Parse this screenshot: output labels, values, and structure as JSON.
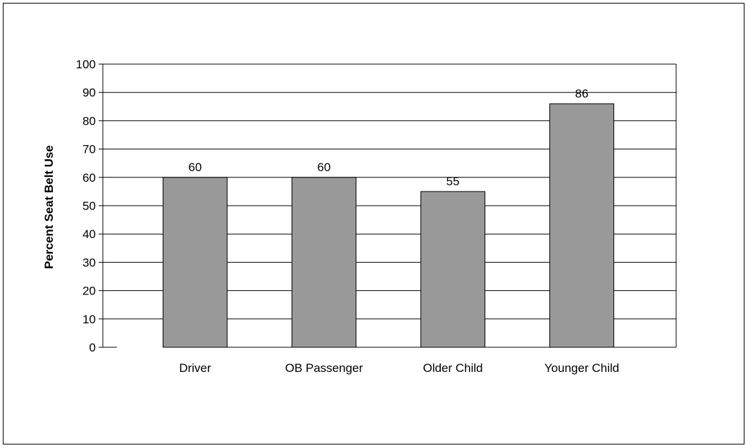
{
  "chart_data": {
    "type": "bar",
    "title": "",
    "xlabel": "",
    "ylabel": "Percent Seat Belt Use",
    "categories": [
      "Driver",
      "OB Passenger",
      "Older Child",
      "Younger Child"
    ],
    "values": [
      60,
      60,
      55,
      86
    ],
    "data_labels": [
      "60",
      "60",
      "55",
      "86"
    ],
    "ylim": [
      0,
      100
    ],
    "yticks": [
      0,
      10,
      20,
      30,
      40,
      50,
      60,
      70,
      80,
      90,
      100
    ],
    "grid": true,
    "legend": "none",
    "colors": {
      "bar": "#999999",
      "bar_stroke": "#000000",
      "grid": "#000000"
    }
  }
}
